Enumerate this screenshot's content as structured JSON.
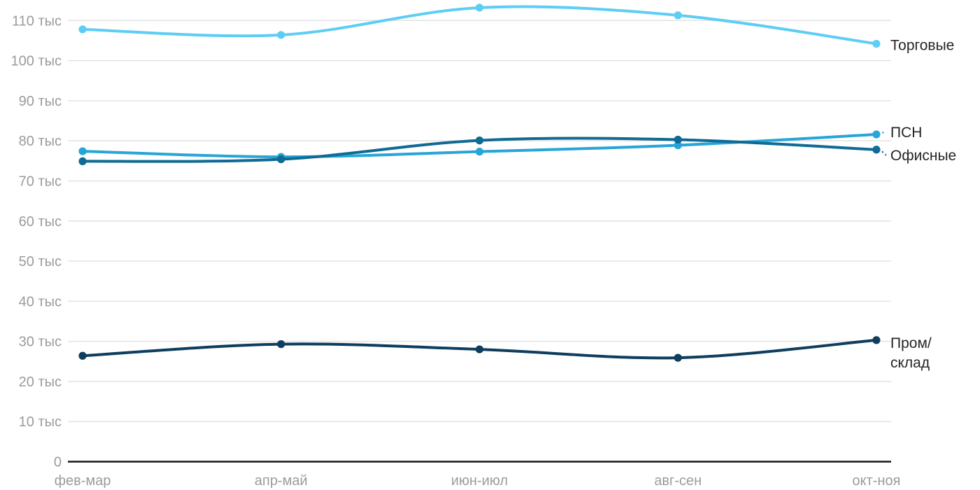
{
  "chart_data": {
    "type": "line",
    "title": "",
    "unit": "тыс",
    "grid": true,
    "legend_position": "direct-labels-right",
    "ylim": [
      0,
      115
    ],
    "categories": [
      "фев-мар",
      "апр-май",
      "июн-июл",
      "авг-сен",
      "окт-ноя"
    ],
    "y_ticks": [
      {
        "value": 0,
        "label": "0"
      },
      {
        "value": 10,
        "label": "10 тыс"
      },
      {
        "value": 20,
        "label": "20 тыс"
      },
      {
        "value": 30,
        "label": "30 тыс"
      },
      {
        "value": 40,
        "label": "40 тыс"
      },
      {
        "value": 50,
        "label": "50 тыс"
      },
      {
        "value": 60,
        "label": "60 тыс"
      },
      {
        "value": 70,
        "label": "70 тыс"
      },
      {
        "value": 80,
        "label": "80 тыс"
      },
      {
        "value": 90,
        "label": "90 тыс"
      },
      {
        "value": 100,
        "label": "100 тыс"
      },
      {
        "value": 110,
        "label": "110 тыс"
      }
    ],
    "series": [
      {
        "id": "torgovye",
        "name": "Торговые",
        "label_lines": [
          "Торговые"
        ],
        "color": "#5ecdf5",
        "values": [
          107.8,
          106.4,
          113.2,
          111.3,
          104.2
        ]
      },
      {
        "id": "psn",
        "name": "ПСН",
        "label_lines": [
          "ПСН"
        ],
        "color": "#28a5d8",
        "values": [
          77.4,
          76.0,
          77.3,
          78.9,
          81.6
        ]
      },
      {
        "id": "ofisnye",
        "name": "Офисные",
        "label_lines": [
          "Офисные"
        ],
        "color": "#0f6a94",
        "values": [
          74.9,
          75.4,
          80.1,
          80.3,
          77.8
        ]
      },
      {
        "id": "prom-sklad",
        "name": "Пром/склад",
        "label_lines": [
          "Пром/",
          "склад"
        ],
        "color": "#0e3d5e",
        "values": [
          26.4,
          29.3,
          28.0,
          25.9,
          30.3
        ]
      }
    ],
    "colors": {
      "grid": "#e3e3e3",
      "axis": "#171717",
      "tick_text": "#9b9b9b",
      "label_text": "#262626"
    }
  }
}
